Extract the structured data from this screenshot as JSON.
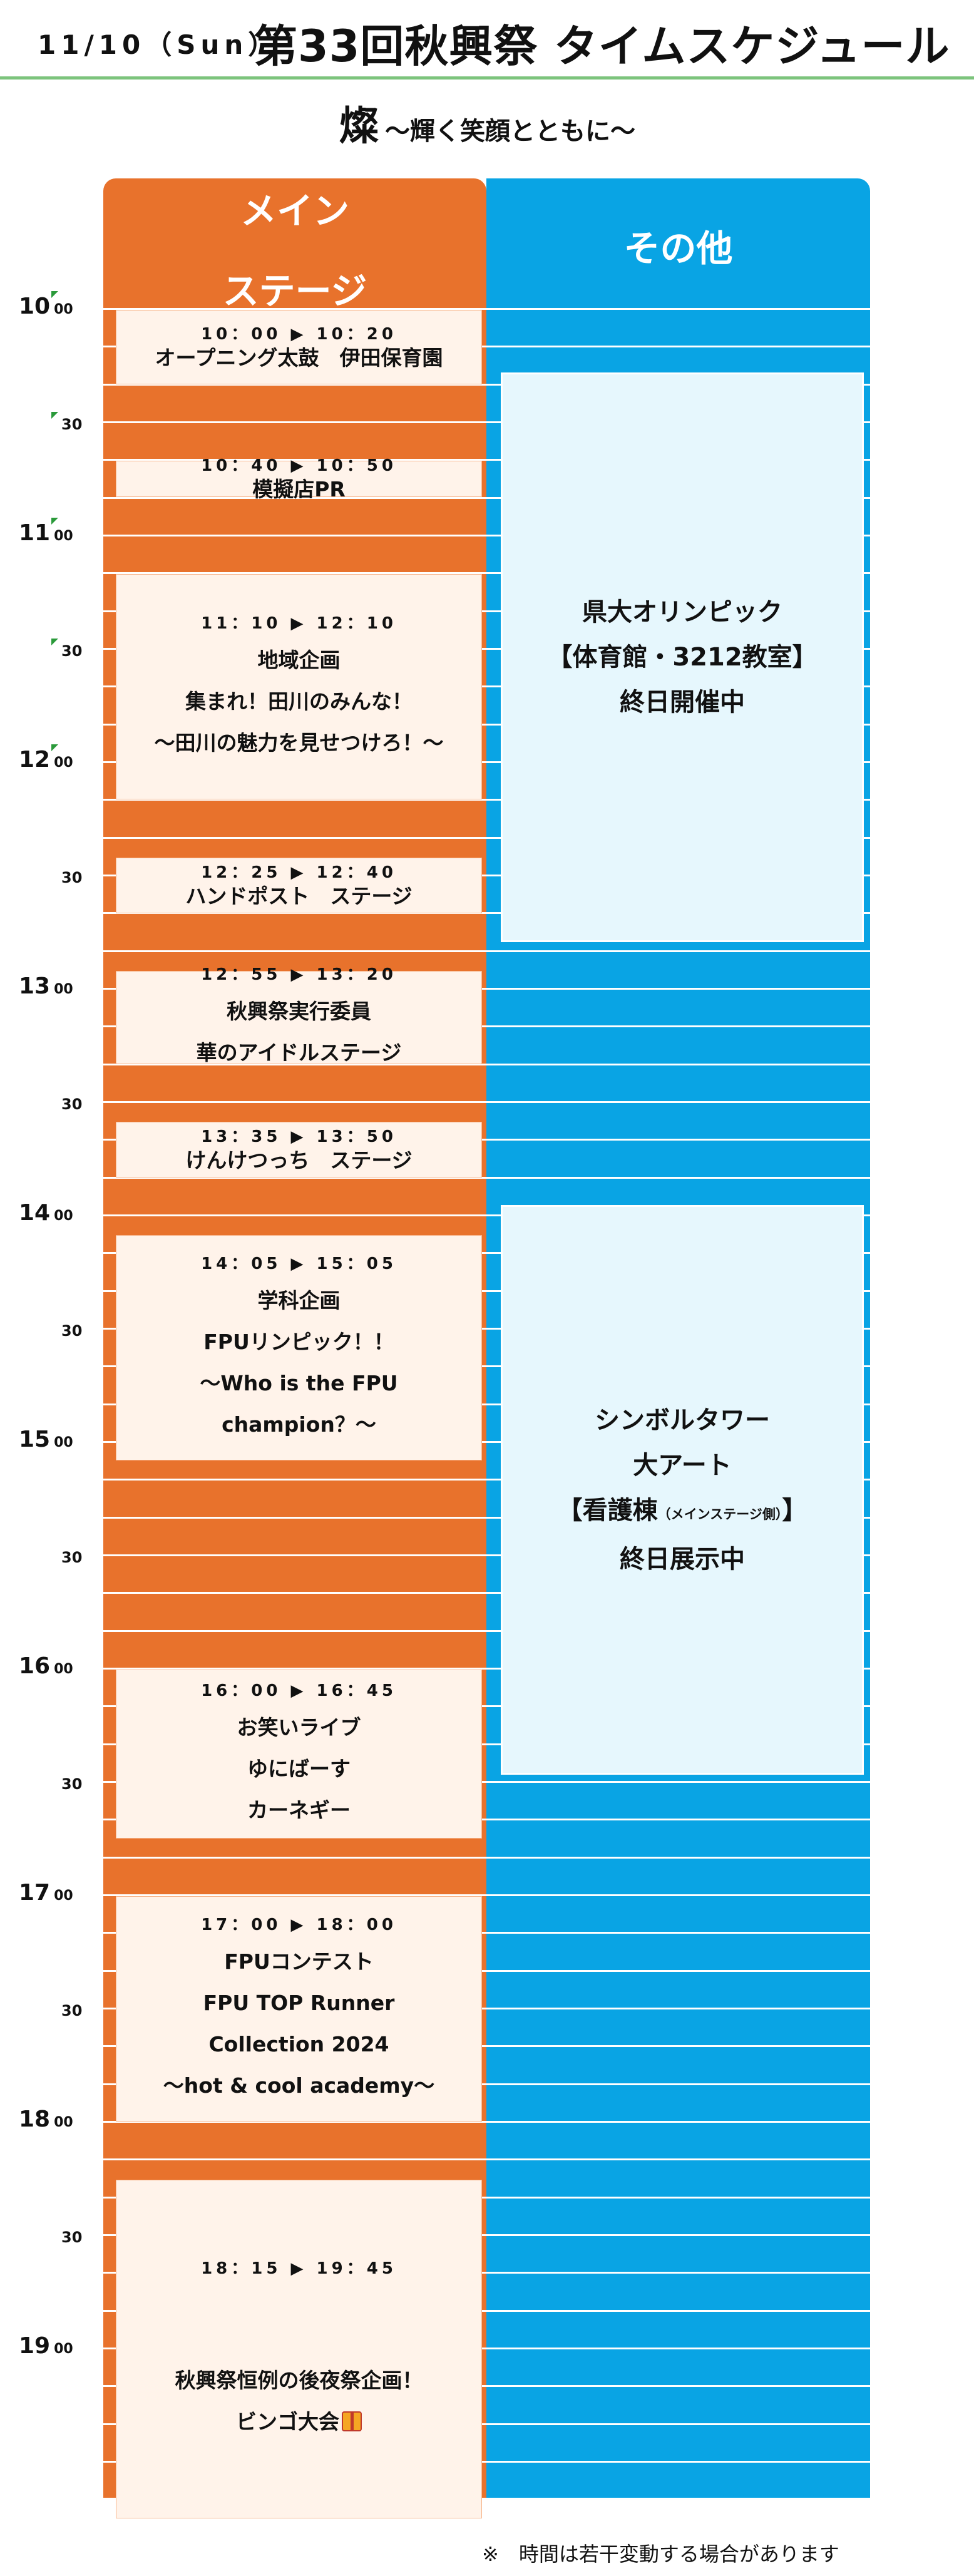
{
  "header": {
    "date": "11/10（Sun）",
    "title": "第33回秋興祭 タイムスケジュール",
    "theme_kanji": "燦",
    "theme_sub": "～輝く笑顔とともに～"
  },
  "columns": {
    "main_line1": "メイン",
    "main_line2": "ステージ",
    "other": "その他"
  },
  "hours": [
    {
      "h": "10",
      "m": "00"
    },
    {
      "h": "11",
      "m": "00"
    },
    {
      "h": "12",
      "m": "00"
    },
    {
      "h": "13",
      "m": "00"
    },
    {
      "h": "14",
      "m": "00"
    },
    {
      "h": "15",
      "m": "00"
    },
    {
      "h": "16",
      "m": "00"
    },
    {
      "h": "17",
      "m": "00"
    },
    {
      "h": "18",
      "m": "00"
    },
    {
      "h": "19",
      "m": "00"
    }
  ],
  "half_label": "30",
  "main_events": [
    {
      "time": "10：00 ▶ 10：20",
      "lines": [
        "オープニング太鼓　伊田保育園"
      ]
    },
    {
      "time": "10：40 ▶ 10：50",
      "lines": [
        "模擬店PR"
      ]
    },
    {
      "time": "11：10 ▶ 12：10",
      "lines": [
        "地域企画",
        "集まれ！田川のみんな！",
        "～田川の魅力を見せつけろ！～"
      ]
    },
    {
      "time": "12：25 ▶ 12：40",
      "lines": [
        "ハンドポスト　ステージ"
      ]
    },
    {
      "time": "12：55 ▶ 13：20",
      "lines": [
        "秋興祭実行委員",
        "華のアイドルステージ"
      ]
    },
    {
      "time": "13：35 ▶ 13：50",
      "lines": [
        "けんけつっち　ステージ"
      ]
    },
    {
      "time": "14：05 ▶ 15：05",
      "lines": [
        "学科企画",
        "FPUリンピック！！",
        "～Who is the FPU",
        "champion？～"
      ]
    },
    {
      "time": "16：00 ▶ 16：45",
      "lines": [
        "お笑いライブ",
        "ゆにばーす",
        "カーネギー"
      ]
    },
    {
      "time": "17：00 ▶ 18：00",
      "lines": [
        "FPUコンテスト",
        "FPU TOP Runner",
        "Collection 2024",
        "～hot & cool academy～"
      ]
    },
    {
      "time": "18：15 ▶ 19：45",
      "lines": [
        "秋興祭恒例の後夜祭企画！",
        "ビンゴ大会"
      ]
    }
  ],
  "other_events": [
    {
      "lines": [
        "県大オリンピック",
        "【体育館・3212教室】",
        "終日開催中"
      ]
    },
    {
      "lines": [
        "シンボルタワー",
        "大アート",
        "【看護棟",
        "（メインステージ側）",
        "】",
        "終日展示中"
      ]
    }
  ],
  "footnote": "※　時間は若干変動する場合があります",
  "colors": {
    "main": "#e8722c",
    "other": "#09a4e4",
    "box": "#fff3ea",
    "other_box": "#e6f7fd",
    "rule": "#7cc47c"
  }
}
